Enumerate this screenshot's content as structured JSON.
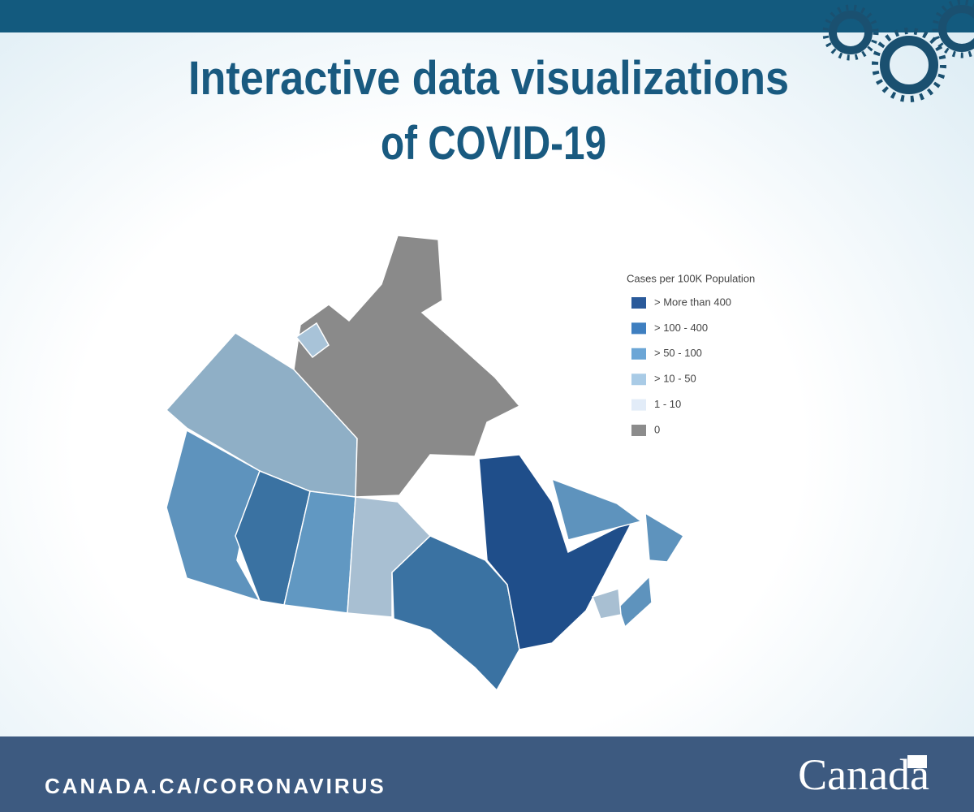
{
  "header": {
    "title_lines": [
      "Interactive data visualizations",
      "of COVID-19"
    ]
  },
  "legend": {
    "title": "Cases per 100K Population",
    "items": [
      {
        "label": "> More than 400",
        "color": "#2a5a9a"
      },
      {
        "label": "> 100 - 400",
        "color": "#3f7fc0"
      },
      {
        "label": "> 50 - 100",
        "color": "#6ca6d6"
      },
      {
        "label": "> 10 - 50",
        "color": "#a9cbe6"
      },
      {
        "label": "1 - 10",
        "color": "#e2ecf8"
      },
      {
        "label": "0",
        "color": "#8c8c8c"
      }
    ]
  },
  "footer": {
    "url": "CANADA.CA/CORONAVIRUS",
    "wordmark": "Canada"
  }
}
